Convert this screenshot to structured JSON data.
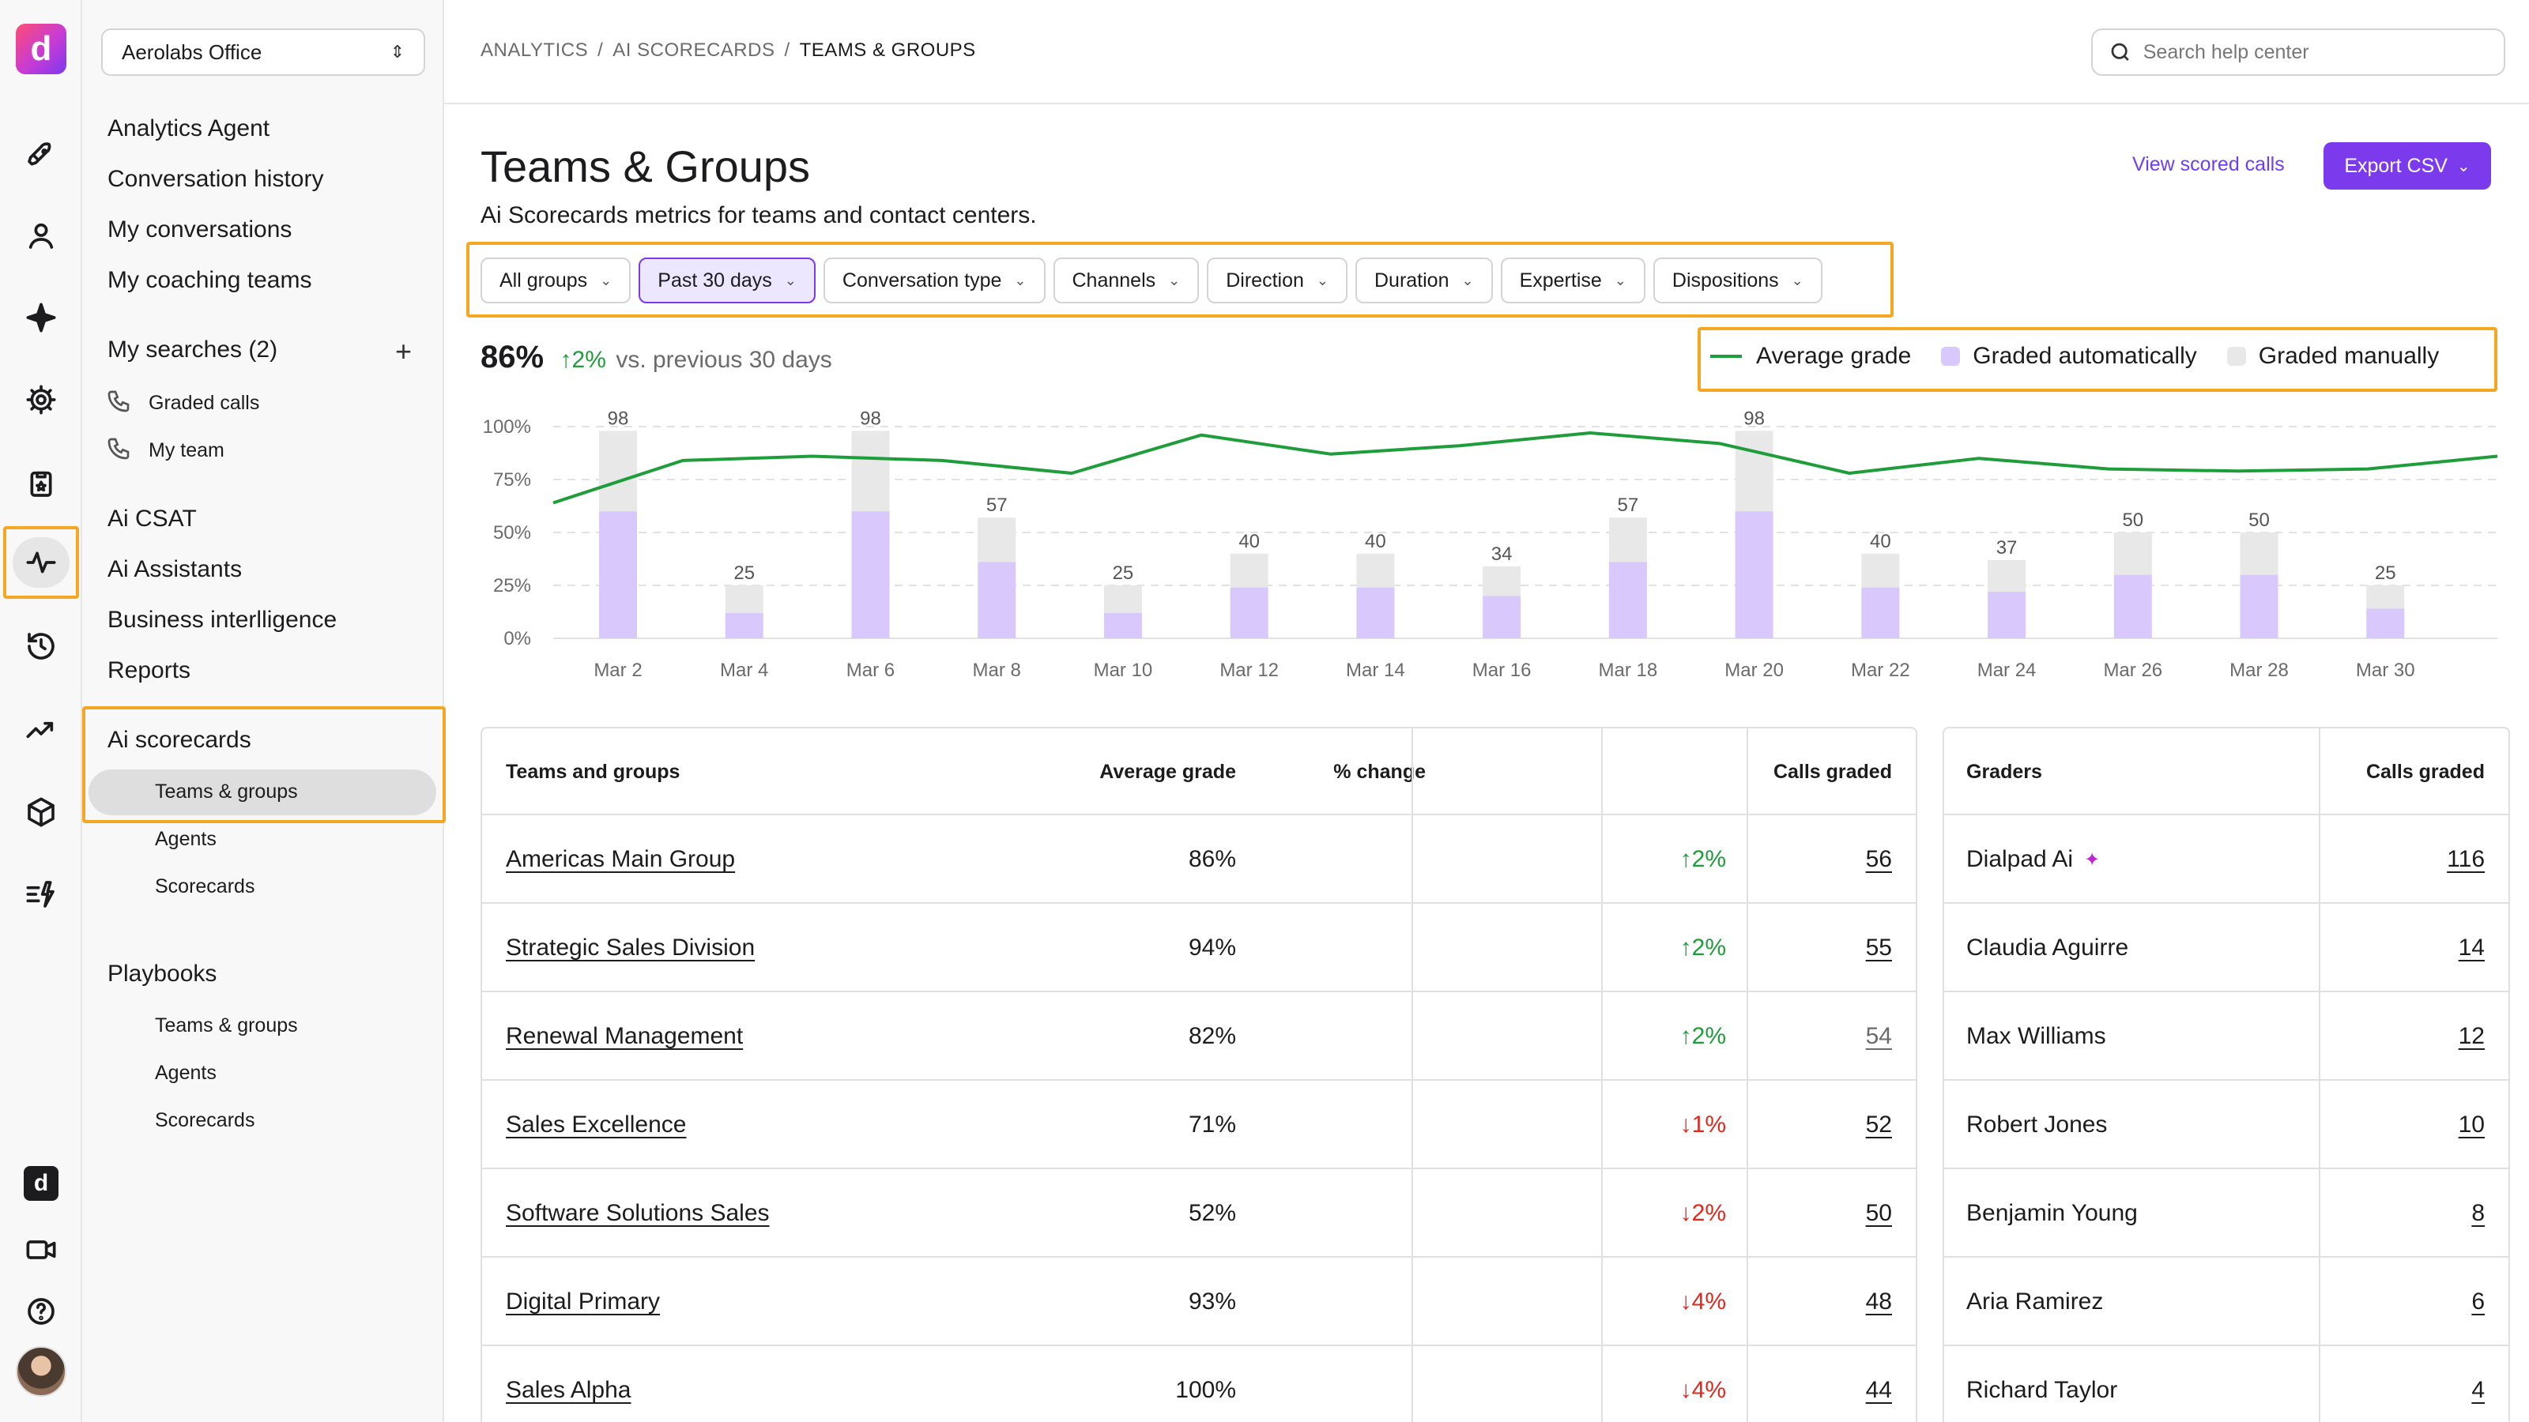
{
  "rail": {
    "logo_letter": "d",
    "icons": [
      "rocket-icon",
      "person-icon",
      "sparkle-icon",
      "gear-icon",
      "clipboard-icon",
      "activity-icon",
      "history-icon",
      "trend-icon",
      "cube-icon",
      "lightning-list-icon",
      "dialpad-logo-icon",
      "video-icon",
      "help-icon",
      "avatar"
    ]
  },
  "sidenav": {
    "org": "Aerolabs Office",
    "items": [
      "Analytics Agent",
      "Conversation history",
      "My conversations",
      "My coaching teams"
    ],
    "searches_label": "My searches (2)",
    "searches": [
      "Graded calls",
      "My team"
    ],
    "items2": [
      "Ai CSAT",
      "Ai Assistants",
      "Business interlligence",
      "Reports"
    ],
    "scorecards_label": "Ai scorecards",
    "scorecards": [
      "Teams & groups",
      "Agents",
      "Scorecards"
    ],
    "playbooks_label": "Playbooks",
    "playbooks": [
      "Teams & groups",
      "Agents",
      "Scorecards"
    ]
  },
  "breadcrumbs": [
    "ANALYTICS",
    "AI SCORECARDS",
    "TEAMS & GROUPS"
  ],
  "search": {
    "placeholder": "Search help center"
  },
  "header": {
    "title": "Teams & Groups",
    "subtitle": "Ai Scorecards metrics for teams and contact centers.",
    "view_link": "View scored calls",
    "export_label": "Export CSV"
  },
  "filters": [
    "All groups",
    "Past 30 days",
    "Conversation type",
    "Channels",
    "Direction",
    "Duration",
    "Expertise",
    "Dispositions"
  ],
  "active_filter": "Past 30 days",
  "summary": {
    "value": "86%",
    "delta": "2%",
    "compare": "vs. previous 30 days"
  },
  "legend": [
    "Average grade",
    "Graded automatically",
    "Graded manually"
  ],
  "colors": {
    "accent": "#7c3aed",
    "auto": "#d9c8fb",
    "manual": "#e8e8e8",
    "line": "#1f9d3a",
    "up": "#1f9d3a",
    "down": "#e0281e",
    "highlight": "#f5a623"
  },
  "chart_data": {
    "type": "bar",
    "categories": [
      "Mar 2",
      "Mar 4",
      "Mar 6",
      "Mar 8",
      "Mar 10",
      "Mar 12",
      "Mar 14",
      "Mar 16",
      "Mar 18",
      "Mar 20",
      "Mar 22",
      "Mar 24",
      "Mar 26",
      "Mar 28",
      "Mar 30"
    ],
    "series": [
      {
        "name": "Graded automatically",
        "values": [
          60,
          12,
          60,
          36,
          12,
          24,
          24,
          20,
          36,
          60,
          24,
          22,
          30,
          30,
          14
        ]
      },
      {
        "name": "Graded manually",
        "values": [
          38,
          13,
          38,
          21,
          13,
          16,
          16,
          14,
          21,
          38,
          16,
          15,
          20,
          20,
          11
        ]
      }
    ],
    "totals": [
      98,
      25,
      98,
      57,
      25,
      40,
      40,
      34,
      57,
      98,
      40,
      37,
      50,
      50,
      25
    ],
    "line": {
      "name": "Average grade",
      "x": [
        "Mar 1",
        "Mar 3",
        "Mar 5",
        "Mar 7",
        "Mar 9",
        "Mar 11",
        "Mar 13",
        "Mar 15",
        "Mar 17",
        "Mar 19",
        "Mar 21",
        "Mar 23",
        "Mar 25",
        "Mar 27",
        "Mar 29",
        "Mar 31"
      ],
      "values": [
        64,
        84,
        86,
        84,
        78,
        96,
        87,
        91,
        97,
        92,
        78,
        85,
        80,
        79,
        80,
        86
      ]
    },
    "yticks": [
      "100%",
      "75%",
      "50%",
      "25%",
      "0%"
    ],
    "ylim": [
      0,
      100
    ],
    "grid": true,
    "legend_position": "top-right"
  },
  "teams_table": {
    "headers": [
      "Teams and groups",
      "Average grade",
      "% change",
      "Calls graded"
    ],
    "rows": [
      {
        "name": "Americas Main Group",
        "grade": "86%",
        "dir": "up",
        "change": "2%",
        "calls": "56"
      },
      {
        "name": "Strategic Sales Division",
        "grade": "94%",
        "dir": "up",
        "change": "2%",
        "calls": "55"
      },
      {
        "name": "Renewal Management",
        "grade": "82%",
        "dir": "up",
        "change": "2%",
        "calls": "54"
      },
      {
        "name": "Sales Excellence",
        "grade": "71%",
        "dir": "down",
        "change": "1%",
        "calls": "52"
      },
      {
        "name": "Software Solutions Sales",
        "grade": "52%",
        "dir": "down",
        "change": "2%",
        "calls": "50"
      },
      {
        "name": "Digital Primary",
        "grade": "93%",
        "dir": "down",
        "change": "4%",
        "calls": "48"
      },
      {
        "name": "Sales Alpha",
        "grade": "100%",
        "dir": "down",
        "change": "4%",
        "calls": "44"
      }
    ]
  },
  "graders_table": {
    "headers": [
      "Graders",
      "Calls graded"
    ],
    "rows": [
      {
        "name": "Dialpad Ai",
        "calls": "116",
        "ai": true
      },
      {
        "name": "Claudia Aguirre",
        "calls": "14"
      },
      {
        "name": "Max Williams",
        "calls": "12"
      },
      {
        "name": "Robert Jones",
        "calls": "10"
      },
      {
        "name": "Benjamin Young",
        "calls": "8"
      },
      {
        "name": "Aria Ramirez",
        "calls": "6"
      },
      {
        "name": "Richard Taylor",
        "calls": "4"
      }
    ]
  }
}
